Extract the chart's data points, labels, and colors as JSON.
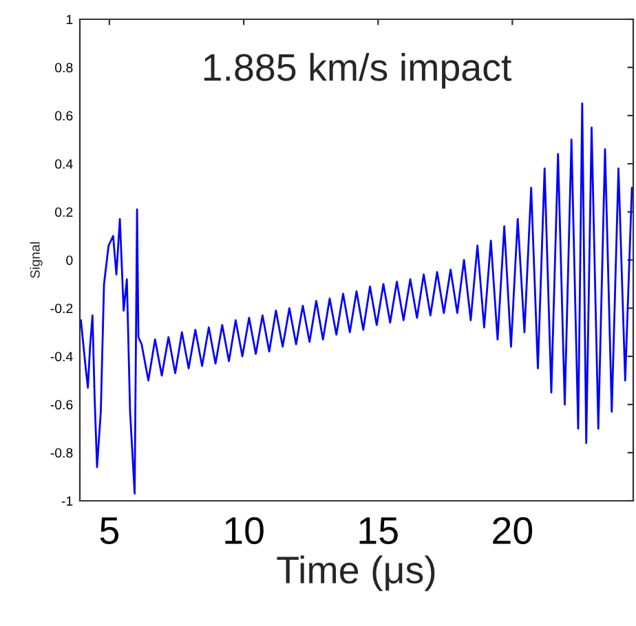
{
  "chart_data": {
    "type": "line",
    "xlabel": "Time (μs)",
    "ylabel": "Signal",
    "annotations": [
      "1.885 km/s impact"
    ],
    "xlim": [
      3.9,
      24.5
    ],
    "ylim": [
      -1,
      1
    ],
    "xticks": [
      5,
      10,
      15,
      20
    ],
    "yticks": [
      -1,
      -0.8,
      -0.6,
      -0.4,
      -0.2,
      0,
      0.2,
      0.4,
      0.6,
      0.8,
      1
    ],
    "grid": false,
    "marker": "none",
    "line_style": "solid",
    "series": [
      {
        "color": "#0000ff",
        "x": [
          3.94,
          4.11,
          4.2,
          4.28,
          4.37,
          4.45,
          4.54,
          4.68,
          4.8,
          4.97,
          5.14,
          5.26,
          5.39,
          5.53,
          5.65,
          5.77,
          5.94,
          6.03,
          6.08,
          6.2,
          6.45,
          6.7,
          6.95,
          7.2,
          7.45,
          7.7,
          7.95,
          8.2,
          8.45,
          8.7,
          8.95,
          9.2,
          9.45,
          9.7,
          9.95,
          10.2,
          10.45,
          10.7,
          10.95,
          11.2,
          11.45,
          11.7,
          11.95,
          12.2,
          12.45,
          12.7,
          12.95,
          13.2,
          13.45,
          13.7,
          13.95,
          14.2,
          14.45,
          14.7,
          14.95,
          15.2,
          15.45,
          15.7,
          15.95,
          16.2,
          16.45,
          16.7,
          16.95,
          17.2,
          17.45,
          17.7,
          17.95,
          18.2,
          18.45,
          18.7,
          18.95,
          19.2,
          19.45,
          19.7,
          19.95,
          20.2,
          20.45,
          20.7,
          20.95,
          21.2,
          21.45,
          21.7,
          21.95,
          22.2,
          22.45,
          22.6,
          22.75,
          22.95,
          23.2,
          23.45,
          23.7,
          23.95,
          24.2,
          24.45
        ],
        "values": [
          -0.25,
          -0.44,
          -0.53,
          -0.36,
          -0.23,
          -0.57,
          -0.86,
          -0.63,
          -0.1,
          0.06,
          0.1,
          -0.06,
          0.17,
          -0.21,
          -0.08,
          -0.63,
          -0.97,
          0.21,
          -0.32,
          -0.35,
          -0.5,
          -0.33,
          -0.48,
          -0.32,
          -0.47,
          -0.3,
          -0.45,
          -0.29,
          -0.44,
          -0.28,
          -0.43,
          -0.27,
          -0.42,
          -0.25,
          -0.4,
          -0.24,
          -0.39,
          -0.23,
          -0.38,
          -0.21,
          -0.36,
          -0.2,
          -0.35,
          -0.19,
          -0.34,
          -0.17,
          -0.33,
          -0.16,
          -0.31,
          -0.14,
          -0.3,
          -0.13,
          -0.29,
          -0.11,
          -0.27,
          -0.1,
          -0.26,
          -0.09,
          -0.25,
          -0.08,
          -0.24,
          -0.06,
          -0.23,
          -0.05,
          -0.22,
          -0.04,
          -0.22,
          0.0,
          -0.25,
          0.06,
          -0.28,
          0.08,
          -0.33,
          0.14,
          -0.36,
          0.17,
          -0.3,
          0.3,
          -0.45,
          0.38,
          -0.55,
          0.44,
          -0.6,
          0.5,
          -0.7,
          0.65,
          -0.76,
          0.55,
          -0.7,
          0.46,
          -0.63,
          0.38,
          -0.5,
          0.3
        ]
      }
    ]
  }
}
